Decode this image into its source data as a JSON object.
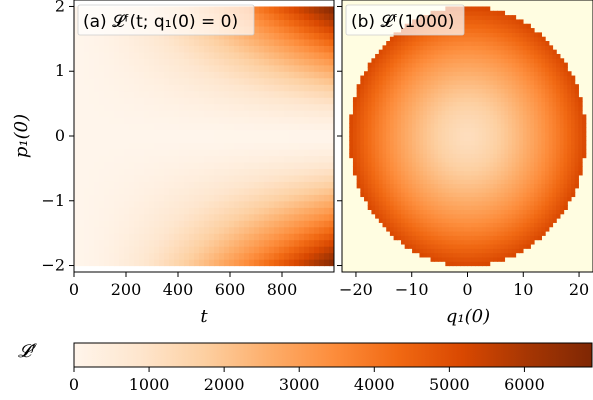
{
  "colors": {
    "cmap": [
      "#fff5eb",
      "#fee6ce",
      "#fdd0a2",
      "#fdae6b",
      "#fd8d3c",
      "#f16913",
      "#d94801",
      "#a63603",
      "#7f2704"
    ],
    "outside_circle": "#fffde1",
    "axis": "#000000",
    "label_box": "#ffffff"
  },
  "chart_data": [
    {
      "type": "heatmap",
      "panel": "(a)",
      "title": "(a) 𝓛ᶠ(t; q₁(0) = 0)",
      "xlabel": "t",
      "ylabel": "p₁(0)",
      "xlim": [
        0,
        1000
      ],
      "ylim": [
        -2.1,
        2.1
      ],
      "data_extent_y": [
        -2,
        2
      ],
      "x_ticks": [
        0,
        200,
        400,
        600,
        800
      ],
      "x_tick_labels": [
        "0",
        "200",
        "400",
        "600",
        "800"
      ],
      "y_ticks": [
        -2,
        -1,
        0,
        1,
        2
      ],
      "y_tick_labels": [
        "−2",
        "−1",
        "0",
        "1",
        "2"
      ],
      "value_model": "L ≈ 6900 · (t/1000)^1.6 · (|p₁(0)|/2)^1.4 (increasing with t and |p₁(0)|)"
    },
    {
      "type": "heatmap",
      "panel": "(b)",
      "title": "(b) 𝓛ᶠ(1000)",
      "xlabel": "q₁(0)",
      "ylabel": "",
      "xlim": [
        -22.5,
        22.5
      ],
      "ylim": [
        -2.1,
        2.1
      ],
      "circle_radius_q": 21.2,
      "circle_radius_p": 2.0,
      "x_ticks": [
        -20,
        -10,
        0,
        10,
        20
      ],
      "x_tick_labels": [
        "−20",
        "−10",
        "0",
        "10",
        "20"
      ],
      "value_model": "L ≈ 1200 + 4000 · r^1.5 inside the ellipse r = sqrt((q/21.2)^2 + (p/2)^2) ≤ 1; outside is empty"
    },
    {
      "type": "colorbar",
      "label": "𝓛ᶠ",
      "range": [
        0,
        6900
      ],
      "ticks": [
        0,
        1000,
        2000,
        3000,
        4000,
        5000,
        6000
      ],
      "tick_labels": [
        "0",
        "1000",
        "2000",
        "3000",
        "4000",
        "5000",
        "6000"
      ]
    }
  ]
}
